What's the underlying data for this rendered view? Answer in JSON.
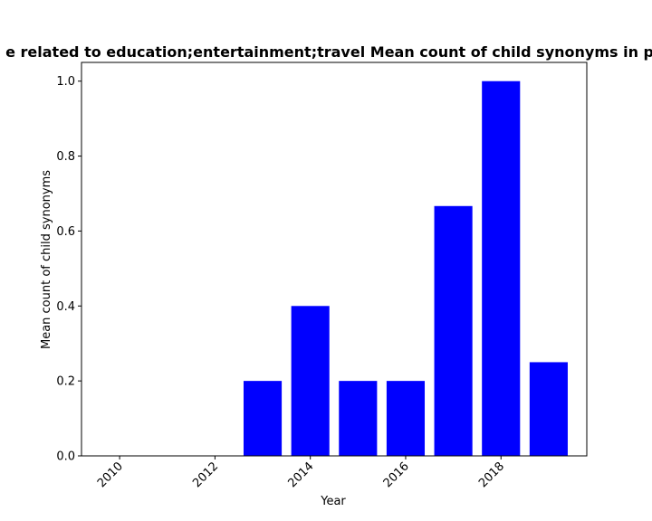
{
  "chart_data": {
    "type": "bar",
    "title": "e related to education;entertainment;travel Mean count of child synonyms in pr",
    "xlabel": "Year",
    "ylabel": "Mean count of child synonyms",
    "categories": [
      2013,
      2014,
      2015,
      2016,
      2017,
      2018,
      2019
    ],
    "values": [
      0.2,
      0.4,
      0.2,
      0.2,
      0.6667,
      1.0,
      0.25
    ],
    "xlim": [
      2009.2,
      2019.8
    ],
    "ylim": [
      0,
      1.05
    ],
    "xticks": [
      "2010",
      "2012",
      "2014",
      "2016",
      "2018"
    ],
    "yticks": [
      "0.0",
      "0.2",
      "0.4",
      "0.6",
      "0.8",
      "1.0"
    ],
    "bar_color": "#0000ff",
    "grid": false,
    "legend": "none"
  }
}
